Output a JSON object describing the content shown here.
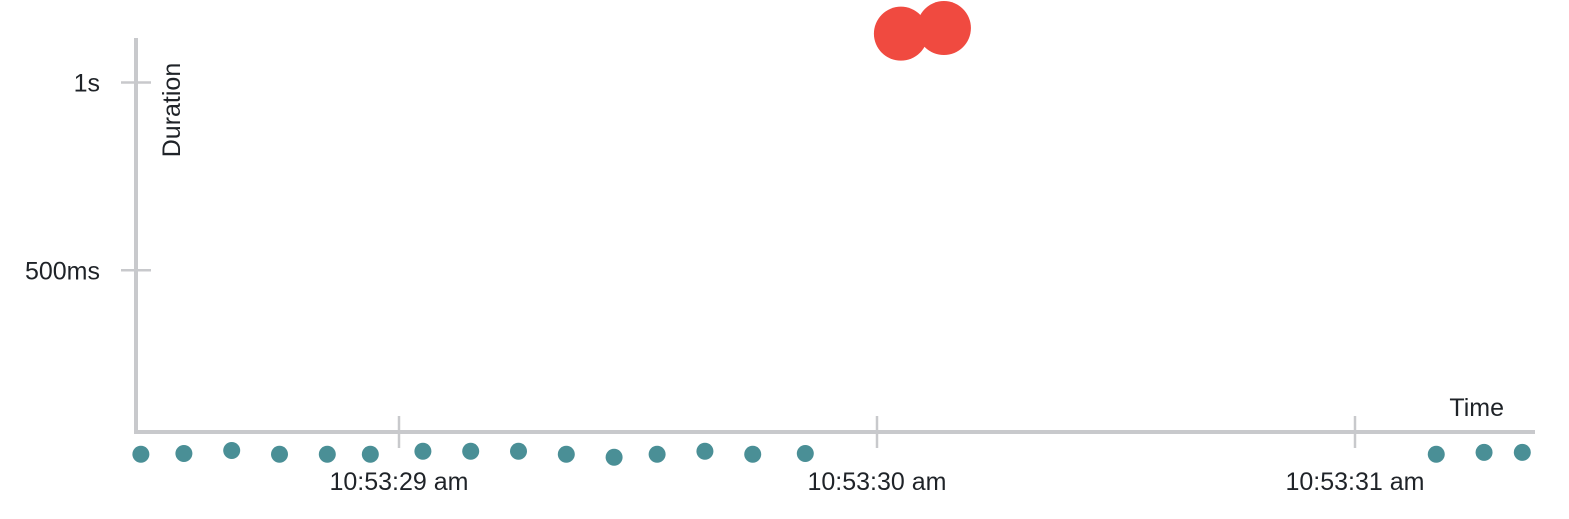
{
  "chart_data": {
    "type": "scatter",
    "xlabel": "Time",
    "ylabel": "Duration",
    "x_tick_labels": [
      "10:53:29 am",
      "10:53:30 am",
      "10:53:31 am"
    ],
    "y_tick_labels": [
      "500ms",
      "1s"
    ],
    "y_tick_values_ms": [
      500,
      1000
    ],
    "x_axis_unit": "seconds after 10:53:29 am",
    "x_tick_values": [
      0,
      1,
      2
    ],
    "ylim_ms": [
      0,
      1100
    ],
    "xlim": [
      -0.55,
      2.35
    ],
    "grid": false,
    "legend": "none",
    "colors": {
      "normal": "#4a8f96",
      "slow": "#f04a40",
      "axis": "#c8c9cc",
      "text": "#1f2328"
    },
    "series": [
      {
        "color_key": "normal",
        "points": [
          {
            "x": -0.54,
            "y": 10
          },
          {
            "x": -0.45,
            "y": 12
          },
          {
            "x": -0.35,
            "y": 20
          },
          {
            "x": -0.25,
            "y": 10
          },
          {
            "x": -0.15,
            "y": 10
          },
          {
            "x": -0.06,
            "y": 10
          },
          {
            "x": 0.05,
            "y": 18
          },
          {
            "x": 0.15,
            "y": 18
          },
          {
            "x": 0.25,
            "y": 18
          },
          {
            "x": 0.35,
            "y": 10
          },
          {
            "x": 0.45,
            "y": 2
          },
          {
            "x": 0.54,
            "y": 10
          },
          {
            "x": 0.64,
            "y": 18
          },
          {
            "x": 0.74,
            "y": 10
          },
          {
            "x": 0.85,
            "y": 12
          },
          {
            "x": 2.17,
            "y": 10
          },
          {
            "x": 2.27,
            "y": 15
          },
          {
            "x": 2.35,
            "y": 15
          }
        ]
      },
      {
        "color_key": "slow",
        "points": [
          {
            "x": 1.05,
            "y": 1130
          },
          {
            "x": 1.14,
            "y": 1145
          }
        ]
      }
    ]
  }
}
